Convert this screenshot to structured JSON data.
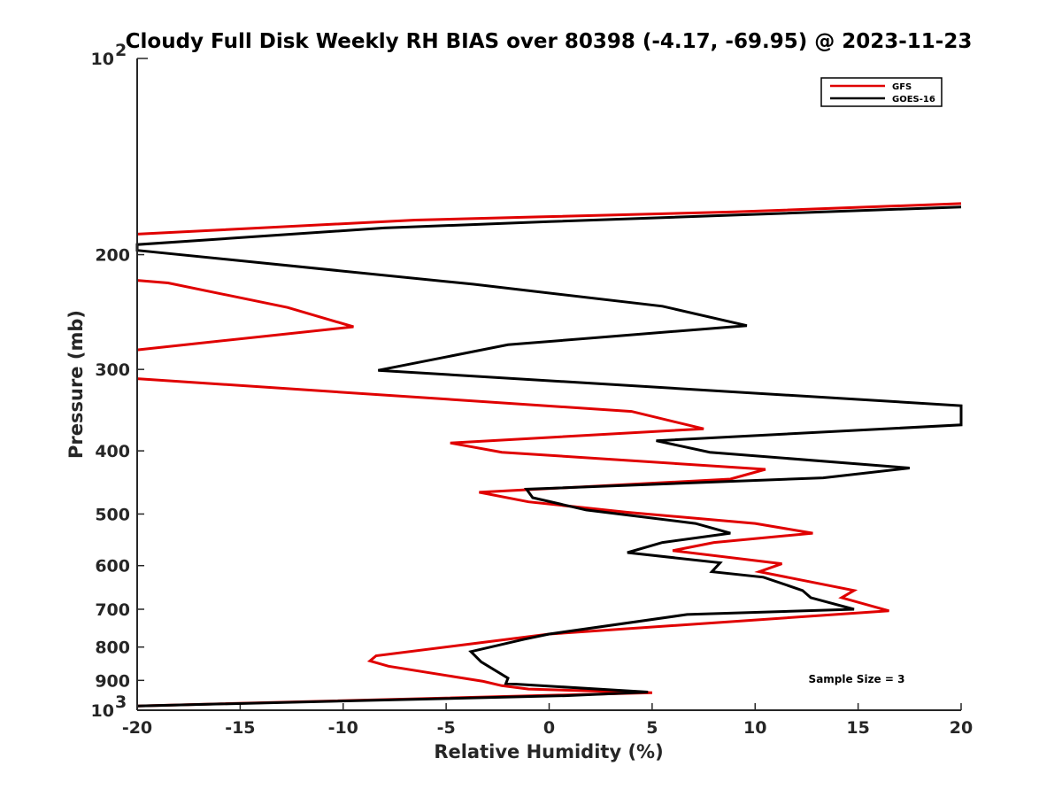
{
  "chart_data": {
    "type": "line",
    "title": "Cloudy Full Disk Weekly RH BIAS over 80398 (-4.17, -69.95) @ 2023-11-23",
    "xlabel": "Relative Humidity (%)",
    "ylabel": "Pressure (mb)",
    "xlim": [
      -20,
      20
    ],
    "ylim": [
      100,
      1000
    ],
    "yscale": "log",
    "y_reversed": true,
    "x_ticks": [
      -20,
      -15,
      -10,
      -5,
      0,
      5,
      10,
      15,
      20
    ],
    "x_tick_labels": [
      "-20",
      "-15",
      "-10",
      "-5",
      "0",
      "5",
      "10",
      "15",
      "20"
    ],
    "y_ticks": [
      200,
      300,
      400,
      500,
      600,
      700,
      800,
      900
    ],
    "y_tick_labels": [
      "200",
      "300",
      "400",
      "500",
      "600",
      "700",
      "800",
      "900"
    ],
    "y_major_labels": [
      {
        "value": 100,
        "base": "10",
        "exp": "2"
      },
      {
        "value": 1000,
        "base": "10",
        "exp": "3"
      }
    ],
    "legend_position": "top-right",
    "annotation": "Sample Size = 3",
    "series": [
      {
        "name": "GFS",
        "color": "#e00000",
        "points": [
          [
            20,
            167
          ],
          [
            9,
            172
          ],
          [
            -0.5,
            175
          ],
          [
            -6.5,
            177
          ],
          [
            -20,
            186
          ],
          [
            null,
            null
          ],
          [
            -20,
            219
          ],
          [
            -18.5,
            221
          ],
          [
            -12.7,
            241
          ],
          [
            -9.5,
            258
          ],
          [
            -20,
            280
          ],
          [
            null,
            null
          ],
          [
            -20,
            310
          ],
          [
            4,
            348
          ],
          [
            7.5,
            370
          ],
          [
            -4.8,
            389
          ],
          [
            -2.3,
            402
          ],
          [
            10.5,
            427
          ],
          [
            8.8,
            442
          ],
          [
            -3.4,
            463
          ],
          [
            -1,
            479
          ],
          [
            3.8,
            497
          ],
          [
            10,
            517
          ],
          [
            12.8,
            535
          ],
          [
            8,
            553
          ],
          [
            6,
            569
          ],
          [
            11.3,
            596
          ],
          [
            10.2,
            613
          ],
          [
            14.8,
            655
          ],
          [
            14.2,
            672
          ],
          [
            16.5,
            704
          ],
          [
            0,
            764
          ],
          [
            -3.5,
            789
          ],
          [
            -8.4,
            825
          ],
          [
            -8.7,
            840
          ],
          [
            -7.8,
            856
          ],
          [
            -3.2,
            903
          ],
          [
            -2.3,
            917
          ],
          [
            -1,
            928
          ],
          [
            5,
            940
          ],
          [
            -20,
            985
          ]
        ]
      },
      {
        "name": "GOES-16",
        "color": "#000000",
        "points": [
          [
            20,
            169
          ],
          [
            0,
            178
          ],
          [
            -8,
            182
          ],
          [
            -20,
            193
          ],
          [
            -20,
            197
          ],
          [
            -3.7,
            222
          ],
          [
            5.5,
            240
          ],
          [
            9.6,
            257
          ],
          [
            -2,
            275
          ],
          [
            -8.3,
            301
          ],
          [
            20,
            341
          ],
          [
            20,
            365
          ],
          [
            5.2,
            386
          ],
          [
            7.8,
            402
          ],
          [
            17.5,
            425
          ],
          [
            13.3,
            440
          ],
          [
            -1.1,
            458
          ],
          [
            -0.8,
            472
          ],
          [
            1.8,
            493
          ],
          [
            7.1,
            517
          ],
          [
            8.8,
            535
          ],
          [
            5.5,
            553
          ],
          [
            3.8,
            573
          ],
          [
            8.3,
            594
          ],
          [
            7.9,
            613
          ],
          [
            10.4,
            625
          ],
          [
            12.3,
            655
          ],
          [
            12.7,
            672
          ],
          [
            14.8,
            700
          ],
          [
            6.7,
            713
          ],
          [
            0,
            764
          ],
          [
            -1.2,
            778
          ],
          [
            -3.8,
            813
          ],
          [
            -3.3,
            843
          ],
          [
            -2,
            893
          ],
          [
            -2.1,
            910
          ],
          [
            4.8,
            938
          ],
          [
            0.8,
            950
          ],
          [
            -20,
            985
          ]
        ]
      }
    ]
  }
}
